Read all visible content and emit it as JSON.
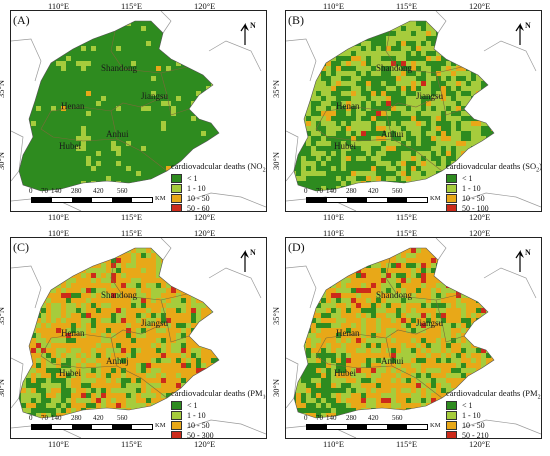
{
  "axes": {
    "lon_ticks": [
      "110°E",
      "115°E",
      "120°E"
    ],
    "lat_ticks": [
      "35°N",
      "30°N"
    ]
  },
  "colors": {
    "class1": "#2e8b1f",
    "class2": "#a6cc3c",
    "class3": "#e8a818",
    "class4": "#cc2a1a",
    "neighbor_border": "#9a9a9a"
  },
  "scale_bar": {
    "labels": [
      "0",
      "70",
      "140",
      "280",
      "420",
      "560"
    ],
    "unit": "KM"
  },
  "north_label": "N",
  "panels": [
    {
      "tag": "(A)",
      "legend_title_main": "cardiovadcular deaths (NO",
      "legend_title_sub": "2",
      "legend_title_end": ")",
      "legend": [
        "< 1",
        "1 - 10",
        "10 - 50",
        "50 - 60"
      ],
      "provinces": [
        "Shandong",
        "Henan",
        "Jiangsu",
        "Anhui",
        "Hubei"
      ]
    },
    {
      "tag": "(B)",
      "legend_title_main": "cardiovadcular deaths (SO",
      "legend_title_sub": "2",
      "legend_title_end": ")",
      "legend": [
        "< 1",
        "1 - 10",
        "10 - 50",
        "50 - 100"
      ],
      "provinces": [
        "Shandong",
        "Henan",
        "Jiangsu",
        "Anhui",
        "Hubei"
      ]
    },
    {
      "tag": "(C)",
      "legend_title_main": "cardiovadcular deaths (PM",
      "legend_title_sub": "10",
      "legend_title_end": ")",
      "legend": [
        "< 1",
        "1 - 10",
        "10 - 50",
        "50 - 300"
      ],
      "provinces": [
        "Shandong",
        "Henan",
        "Jiangsu",
        "Anhuj",
        "Hubei"
      ]
    },
    {
      "tag": "(D)",
      "legend_title_main": "cardiovadcular deaths (PM",
      "legend_title_sub": "2.5",
      "legend_title_end": ")",
      "legend": [
        "< 1",
        "1 - 10",
        "10 - 50",
        "50 - 210"
      ],
      "provinces": [
        "Shandong",
        "Henan",
        "Jiangsu",
        "Anhui",
        "Hubei"
      ]
    }
  ]
}
